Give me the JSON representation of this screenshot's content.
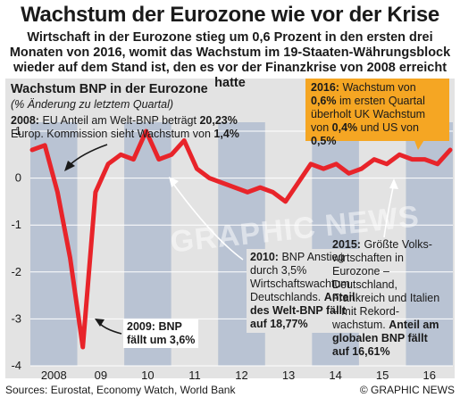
{
  "title": "Wachstum der Eurozone wie vor der Krise",
  "subtitle": "Wirtschaft in der Eurozone stieg um 0,6 Prozent in den ersten drei Monaten von 2016, womit das Wachstum im 19-Staaten-Währungsblock wieder auf dem Stand ist, den es vor der Finanzkrise von 2008 erreicht hatte",
  "annotations": {
    "y2008_a": "2008:",
    "y2008_b": " EU Anteil am Welt-BNP beträgt ",
    "y2008_c": "20,23%",
    "y2008_d": "Europ. Kommission sieht Wachstum von ",
    "y2008_e": "1,4%",
    "y2010_a": "2010:",
    "y2010_b": " BNP Anstieg durch 3,5% Wirtschaftswachtum Deutschlands. ",
    "y2010_c": "Anteil des Welt-BNP fällt auf 18,77%",
    "y2009_a": "2009: BNP",
    "y2009_b": "fällt um 3,6%",
    "y2015_a": "2015:",
    "y2015_b": " Größte Volks-wirtschaften in Eurozone – Deutschland, Frankreich und Italien – mit Rekord-wachstum. ",
    "y2015_c": "Anteil am globalen BNP fällt auf 16,61%",
    "y2016_a": "2016:",
    "y2016_b": " Wachstum von ",
    "y2016_c": "0,6%",
    "y2016_d": " im ersten Quartal überholt UK Wachstum von ",
    "y2016_e": "0,4%",
    "y2016_f": " und US von ",
    "y2016_g": "0,5%"
  },
  "watermark": "GRAPHIC NEWS",
  "footer": {
    "sources": "Sources: Eurostat, Economy Watch,  World Bank",
    "credit": "© GRAPHIC NEWS"
  },
  "colors": {
    "line": "#e8242a",
    "panel": "#e3e3e3",
    "band": "#b9c3d3",
    "callout": "#f5a623"
  },
  "chart_data": {
    "type": "line",
    "title": "Wachstum BNP in der Eurozone",
    "ylabel": "(% Änderung zu letztem Quartal)",
    "ylim": [
      -4,
      1
    ],
    "yticks": [
      -4,
      -3,
      -2,
      -1,
      0,
      1
    ],
    "grid": true,
    "x_labels": [
      "2008",
      "09",
      "10",
      "11",
      "12",
      "13",
      "14",
      "15",
      "16"
    ],
    "series": [
      {
        "values": [
          0.6,
          0.7,
          -0.3,
          -1.7,
          -3.6,
          -0.3,
          0.3,
          0.5,
          0.4,
          1.0,
          0.4,
          0.5,
          0.8,
          0.2,
          0.0,
          -0.1,
          -0.2,
          -0.3,
          -0.2,
          -0.3,
          -0.5,
          -0.1,
          0.3,
          0.2,
          0.3,
          0.1,
          0.2,
          0.4,
          0.3,
          0.5,
          0.4,
          0.4,
          0.3,
          0.6
        ]
      }
    ]
  }
}
